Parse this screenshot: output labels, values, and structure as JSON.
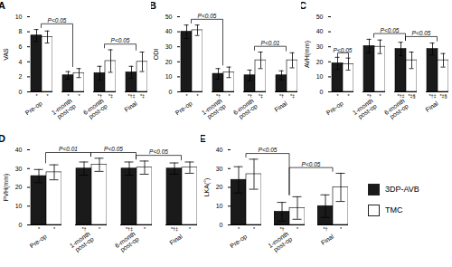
{
  "chart_data": [
    {
      "type": "bar",
      "title": "A",
      "ylabel": "VAS",
      "categories": [
        "Pre-op",
        "1-month\npost-op",
        "6-month\npost-op",
        "Final"
      ],
      "series": [
        {
          "name": "3DP-AVB",
          "color": "#1a1a1a",
          "values": [
            7.5,
            2.2,
            2.5,
            2.6
          ],
          "errors": [
            0.8,
            0.5,
            0.9,
            0.8
          ],
          "sub_labels": [
            "*",
            "*",
            "*†",
            "*†‡"
          ]
        },
        {
          "name": "TMC",
          "color": "#ffffff",
          "values": [
            7.3,
            2.5,
            4.1,
            4.0
          ],
          "errors": [
            0.8,
            0.6,
            1.5,
            1.3
          ],
          "sub_labels": [
            "*",
            "*",
            "*‡",
            "*‡"
          ]
        }
      ],
      "ylim": [
        0,
        10
      ],
      "yticks": [
        0,
        2,
        4,
        6,
        8,
        10
      ],
      "grid": false,
      "annotations": [
        {
          "from": 0,
          "to": 1,
          "label": "P<0.05"
        },
        {
          "from": 2,
          "to": 3,
          "label": "P<0.05"
        }
      ]
    },
    {
      "type": "bar",
      "title": "B",
      "ylabel": "ODI",
      "categories": [
        "Pre-op",
        "1-month\npost-op",
        "6-month\npost-op",
        "Final"
      ],
      "series": [
        {
          "name": "3DP-AVB",
          "color": "#1a1a1a",
          "values": [
            40,
            12,
            11,
            11
          ],
          "errors": [
            4.5,
            3.5,
            3.5,
            3.0
          ],
          "sub_labels": [
            "*",
            "*†",
            "*†",
            "*†"
          ]
        },
        {
          "name": "TMC",
          "color": "#ffffff",
          "values": [
            41,
            13,
            21,
            21
          ],
          "errors": [
            3.5,
            3.5,
            5.5,
            5.0
          ],
          "sub_labels": [
            "*",
            "*",
            "*‡",
            "*‡"
          ]
        }
      ],
      "ylim": [
        0,
        50
      ],
      "yticks": [
        0,
        10,
        20,
        30,
        40,
        50
      ],
      "grid": false,
      "annotations": [
        {
          "from": 0,
          "to": 1,
          "label": "P<0.05"
        },
        {
          "from": 2,
          "to": 3,
          "label": "P<0.01"
        }
      ]
    },
    {
      "type": "bar",
      "title": "C",
      "ylabel": "AVH(mm)",
      "categories": [
        "Pre-op",
        "1-month\npost-op",
        "6-month\npost-op",
        "Final"
      ],
      "series": [
        {
          "name": "3DP-AVB",
          "color": "#1a1a1a",
          "values": [
            19,
            30.5,
            28.5,
            28.5
          ],
          "errors": [
            4.0,
            4.5,
            4.5,
            4.0
          ],
          "sub_labels": [
            "*",
            "*†",
            "*†‡",
            "*†‡"
          ]
        },
        {
          "name": "TMC",
          "color": "#ffffff",
          "values": [
            18.5,
            30,
            21,
            21
          ],
          "errors": [
            4.0,
            4.5,
            5.5,
            4.5
          ],
          "sub_labels": [
            "*",
            "*",
            "*‡§",
            "*‡§"
          ]
        }
      ],
      "ylim": [
        0,
        50
      ],
      "yticks": [
        0,
        10,
        20,
        30,
        40,
        50
      ],
      "grid": false,
      "annotations": [
        {
          "from": 0,
          "to": 0,
          "label": "P<0.05"
        },
        {
          "from": 1,
          "to": 2,
          "label": "P<0.05"
        },
        {
          "from": 2,
          "to": 3,
          "label": "P<0.05"
        }
      ]
    },
    {
      "type": "bar",
      "title": "D",
      "ylabel": "PVH(mm)",
      "categories": [
        "Pre-op",
        "1-month\npost-op",
        "6-month\npost-op",
        "Final"
      ],
      "series": [
        {
          "name": "3DP-AVB",
          "color": "#1a1a1a",
          "values": [
            26,
            30,
            30,
            30
          ],
          "errors": [
            3.5,
            3.5,
            3.5,
            3.0
          ],
          "sub_labels": [
            "*",
            "*†",
            "*†‡",
            "*†‡"
          ]
        },
        {
          "name": "TMC",
          "color": "#ffffff",
          "values": [
            28,
            32,
            30.5,
            30.5
          ],
          "errors": [
            4.0,
            3.5,
            3.5,
            3.0
          ],
          "sub_labels": [
            "*",
            "*",
            "*",
            "*"
          ]
        }
      ],
      "ylim": [
        0,
        40
      ],
      "yticks": [
        0,
        10,
        20,
        30,
        40
      ],
      "grid": false,
      "annotations": [
        {
          "from": 0,
          "to": 1,
          "label": "P<0.01"
        },
        {
          "from": 1,
          "to": 2,
          "label": "P<0.05"
        },
        {
          "from": 2,
          "to": 3,
          "label": "P<0.05"
        }
      ]
    },
    {
      "type": "bar",
      "title": "E",
      "ylabel": "LKA(°)",
      "categories": [
        "Pre-op",
        "1-month\npost-op",
        "Final"
      ],
      "series": [
        {
          "name": "3DP-AVB",
          "color": "#1a1a1a",
          "values": [
            24,
            7,
            10
          ],
          "errors": [
            7.0,
            5.0,
            6.0
          ],
          "sub_labels": [
            "*",
            "*†",
            "*†"
          ]
        },
        {
          "name": "TMC",
          "color": "#ffffff",
          "values": [
            27,
            9,
            20
          ],
          "errors": [
            8.0,
            6.0,
            7.5
          ],
          "sub_labels": [
            "*",
            "*",
            "*"
          ]
        }
      ],
      "ylim": [
        0,
        40
      ],
      "yticks": [
        0,
        10,
        20,
        30,
        40
      ],
      "grid": false,
      "legend": "right",
      "annotations": [
        {
          "from": 0,
          "to": 1,
          "label": "P<0.05"
        },
        {
          "from": 1,
          "to": 2,
          "label": "P<0.05"
        }
      ]
    }
  ]
}
